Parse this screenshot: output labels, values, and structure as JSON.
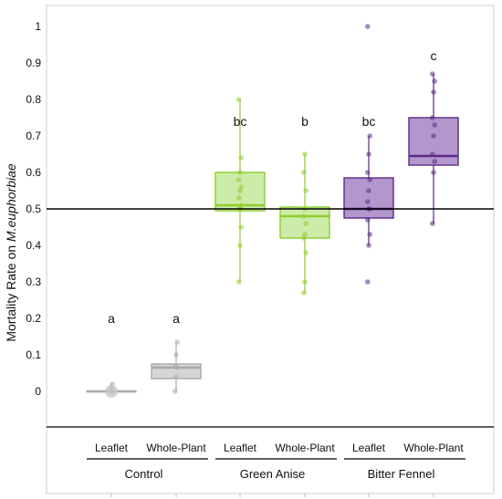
{
  "chart_data": {
    "type": "box",
    "ylabel_prefix": "Mortality Rate on ",
    "ylabel_species": "M.euphorbiae",
    "ylim": [
      -0.1,
      1.05
    ],
    "yticks": [
      0,
      0.1,
      0.2,
      0.3,
      0.4,
      0.5,
      0.6,
      0.7,
      0.8,
      0.9,
      1
    ],
    "ytick_labels": [
      "0",
      "0.1",
      "0.2",
      "0.3",
      "0.4",
      "0.5",
      "0.6",
      "0.7",
      "0.8",
      "0.9",
      "1"
    ],
    "reference_line": 0.5,
    "groups": [
      {
        "label": "Control"
      },
      {
        "label": "Green Anise"
      },
      {
        "label": "Bitter Fennel"
      }
    ],
    "boxes": [
      {
        "group": 0,
        "category": "Leaflet",
        "color": "#a9a9a9",
        "fill": "#d5d5d5",
        "q1": 0.0,
        "median": 0.0,
        "q3": 0.0,
        "whisker_low": 0.0,
        "whisker_high": 0.02,
        "points": [
          0,
          0,
          0,
          0,
          0.01,
          0.02
        ],
        "letter": "a"
      },
      {
        "group": 0,
        "category": "Whole-Plant",
        "color": "#a9a9a9",
        "fill": "#d5d5d5",
        "q1": 0.035,
        "median": 0.065,
        "q3": 0.075,
        "whisker_low": 0.0,
        "whisker_high": 0.135,
        "points": [
          0,
          0.04,
          0.065,
          0.07,
          0.1,
          0.135
        ],
        "letter": "a"
      },
      {
        "group": 1,
        "category": "Leaflet",
        "color": "#8fcc2a",
        "fill": "#c4e89a",
        "q1": 0.495,
        "median": 0.51,
        "q3": 0.6,
        "whisker_low": 0.3,
        "whisker_high": 0.8,
        "points": [
          0.3,
          0.4,
          0.45,
          0.5,
          0.5,
          0.51,
          0.53,
          0.55,
          0.56,
          0.58,
          0.6,
          0.64,
          0.8
        ],
        "letter": "bc"
      },
      {
        "group": 1,
        "category": "Whole-Plant",
        "color": "#8fcc2a",
        "fill": "#c4e89a",
        "q1": 0.42,
        "median": 0.48,
        "q3": 0.505,
        "whisker_low": 0.27,
        "whisker_high": 0.65,
        "points": [
          0.27,
          0.3,
          0.38,
          0.42,
          0.43,
          0.46,
          0.48,
          0.5,
          0.55,
          0.6,
          0.65
        ],
        "letter": "b"
      },
      {
        "group": 2,
        "category": "Leaflet",
        "color": "#5b2a86",
        "fill": "#a584c3",
        "q1": 0.475,
        "median": 0.5,
        "q3": 0.585,
        "whisker_low": 0.4,
        "whisker_high": 0.7,
        "points": [
          0.3,
          0.4,
          0.43,
          0.47,
          0.5,
          0.5,
          0.52,
          0.55,
          0.58,
          0.6,
          0.65,
          0.7,
          1.0
        ],
        "letter": "bc"
      },
      {
        "group": 2,
        "category": "Whole-Plant",
        "color": "#5b2a86",
        "fill": "#a584c3",
        "q1": 0.62,
        "median": 0.645,
        "q3": 0.75,
        "whisker_low": 0.46,
        "whisker_high": 0.87,
        "points": [
          0.46,
          0.6,
          0.63,
          0.65,
          0.7,
          0.73,
          0.75,
          0.82,
          0.85,
          0.87
        ],
        "letter": "c"
      }
    ]
  }
}
